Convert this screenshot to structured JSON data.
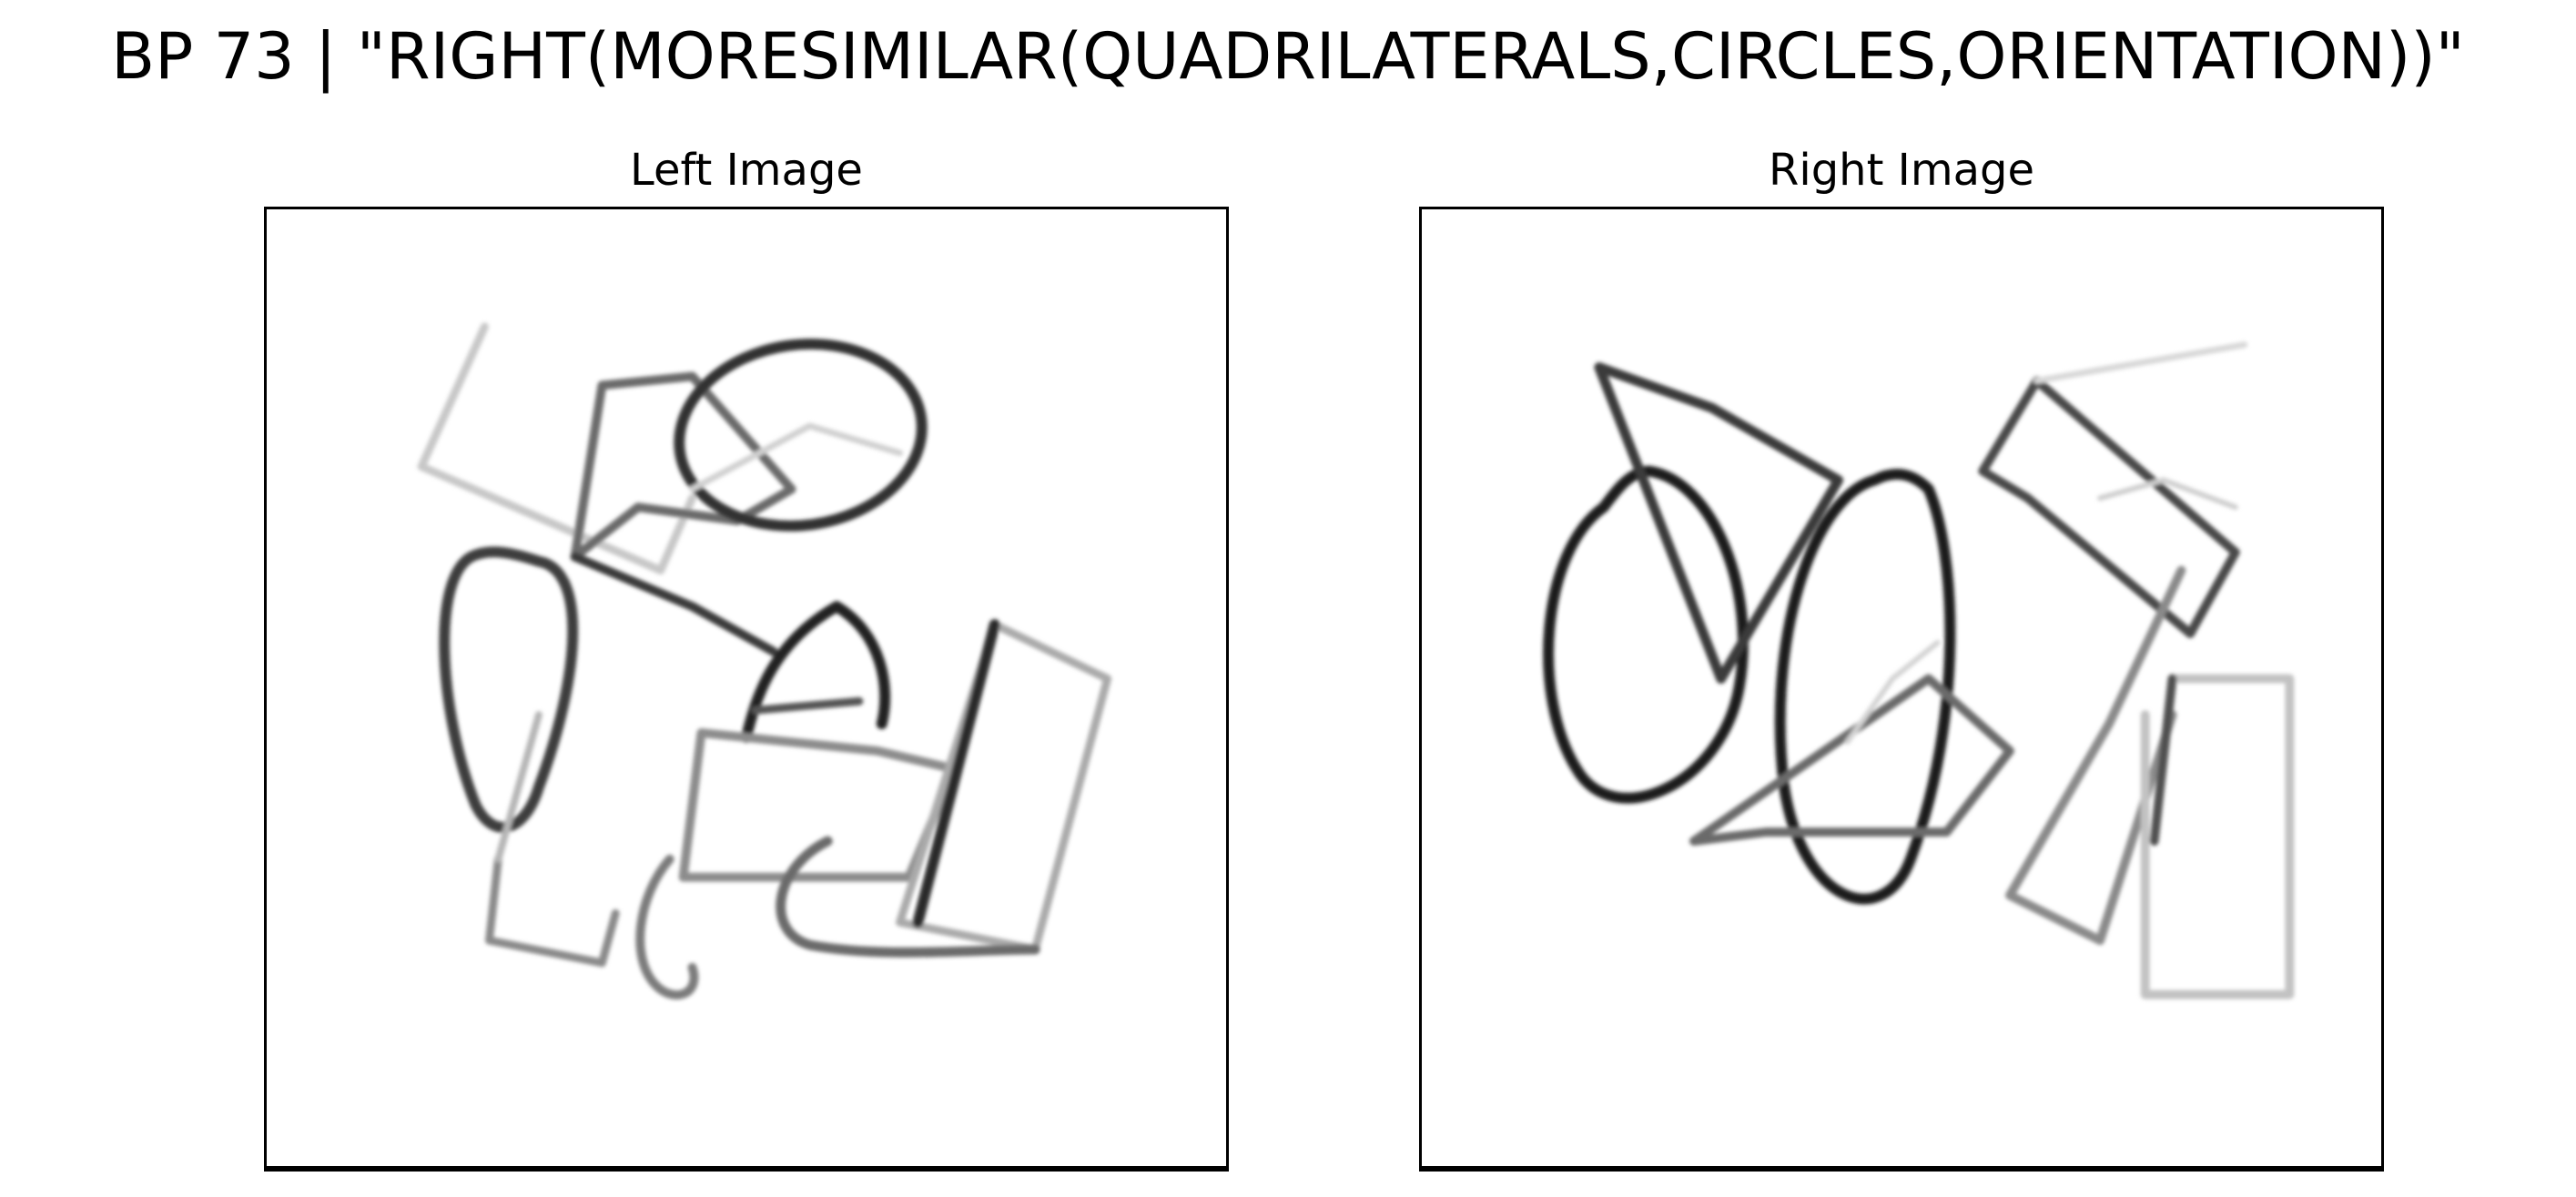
{
  "figure": {
    "title": "BP 73 | \"RIGHT(MORESIMILAR(QUADRILATERALS,CIRCLES,ORIENTATION))\""
  },
  "panels": [
    {
      "title": "Left Image",
      "content": "sketch of overlapping hand-drawn quadrilaterals and ovals"
    },
    {
      "title": "Right Image",
      "content": "sketch of overlapping hand-drawn quadrilaterals and ovals"
    }
  ],
  "colors": {
    "background": "#ffffff",
    "ink": "#000000"
  }
}
